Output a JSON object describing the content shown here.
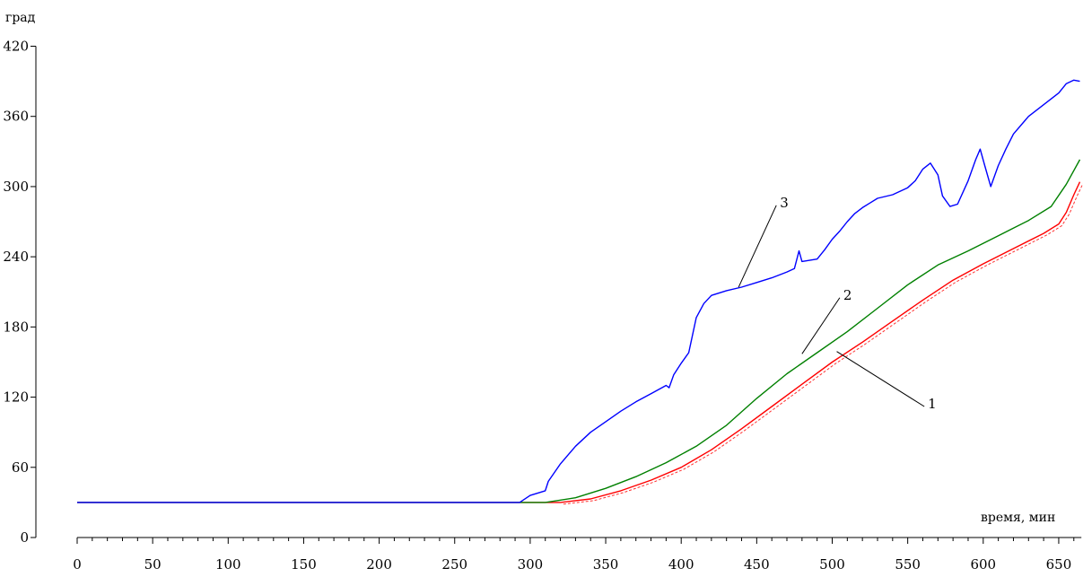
{
  "chart_data": {
    "type": "line",
    "ylabel": "град",
    "xlabel": "время, мин",
    "xlim": [
      0,
      665
    ],
    "ylim": [
      0,
      420
    ],
    "x_ticks": [
      0,
      50,
      100,
      150,
      200,
      250,
      300,
      350,
      400,
      450,
      500,
      550,
      600,
      650
    ],
    "y_ticks": [
      0,
      60,
      120,
      180,
      240,
      300,
      360,
      420
    ],
    "grid": false,
    "series": [
      {
        "name": "1",
        "color": "#ff0000",
        "points": [
          [
            0,
            30
          ],
          [
            290,
            30
          ],
          [
            320,
            30
          ],
          [
            340,
            33
          ],
          [
            360,
            40
          ],
          [
            380,
            49
          ],
          [
            400,
            60
          ],
          [
            420,
            75
          ],
          [
            440,
            93
          ],
          [
            460,
            112
          ],
          [
            480,
            131
          ],
          [
            500,
            150
          ],
          [
            520,
            167
          ],
          [
            540,
            185
          ],
          [
            560,
            203
          ],
          [
            580,
            220
          ],
          [
            600,
            234
          ],
          [
            620,
            247
          ],
          [
            640,
            260
          ],
          [
            650,
            268
          ],
          [
            655,
            278
          ],
          [
            660,
            293
          ],
          [
            664,
            304
          ]
        ]
      },
      {
        "name": "2",
        "color": "#008000",
        "points": [
          [
            0,
            30
          ],
          [
            290,
            30
          ],
          [
            310,
            30
          ],
          [
            330,
            34
          ],
          [
            350,
            42
          ],
          [
            370,
            52
          ],
          [
            390,
            64
          ],
          [
            410,
            78
          ],
          [
            430,
            96
          ],
          [
            450,
            119
          ],
          [
            470,
            140
          ],
          [
            490,
            158
          ],
          [
            510,
            176
          ],
          [
            530,
            196
          ],
          [
            550,
            216
          ],
          [
            570,
            233
          ],
          [
            590,
            245
          ],
          [
            610,
            258
          ],
          [
            630,
            271
          ],
          [
            645,
            283
          ],
          [
            655,
            302
          ],
          [
            664,
            323
          ]
        ]
      },
      {
        "name": "3",
        "color": "#0000ff",
        "points": [
          [
            0,
            30
          ],
          [
            293,
            30
          ],
          [
            300,
            36
          ],
          [
            310,
            40
          ],
          [
            312,
            48
          ],
          [
            320,
            63
          ],
          [
            330,
            78
          ],
          [
            340,
            90
          ],
          [
            350,
            99
          ],
          [
            360,
            108
          ],
          [
            370,
            116
          ],
          [
            380,
            123
          ],
          [
            390,
            130
          ],
          [
            392,
            128
          ],
          [
            395,
            139
          ],
          [
            400,
            149
          ],
          [
            405,
            158
          ],
          [
            410,
            188
          ],
          [
            415,
            200
          ],
          [
            420,
            207
          ],
          [
            430,
            211
          ],
          [
            440,
            214
          ],
          [
            450,
            218
          ],
          [
            460,
            222
          ],
          [
            470,
            227
          ],
          [
            475,
            230
          ],
          [
            478,
            245
          ],
          [
            480,
            236
          ],
          [
            490,
            238
          ],
          [
            495,
            246
          ],
          [
            500,
            255
          ],
          [
            505,
            262
          ],
          [
            510,
            270
          ],
          [
            515,
            277
          ],
          [
            520,
            282
          ],
          [
            525,
            286
          ],
          [
            530,
            290
          ],
          [
            540,
            293
          ],
          [
            550,
            299
          ],
          [
            555,
            305
          ],
          [
            560,
            315
          ],
          [
            565,
            320
          ],
          [
            570,
            310
          ],
          [
            573,
            292
          ],
          [
            578,
            283
          ],
          [
            583,
            285
          ],
          [
            590,
            305
          ],
          [
            595,
            323
          ],
          [
            598,
            332
          ],
          [
            601,
            318
          ],
          [
            605,
            300
          ],
          [
            610,
            318
          ],
          [
            615,
            332
          ],
          [
            620,
            345
          ],
          [
            630,
            360
          ],
          [
            640,
            370
          ],
          [
            650,
            380
          ],
          [
            655,
            388
          ],
          [
            660,
            391
          ],
          [
            664,
            390
          ]
        ]
      }
    ],
    "annotations": [
      {
        "label": "1",
        "target": [
          503,
          159
        ],
        "label_at": [
          561,
          112
        ]
      },
      {
        "label": "2",
        "target": [
          480,
          157
        ],
        "label_at": [
          505,
          205
        ]
      },
      {
        "label": "3",
        "target": [
          438,
          214
        ],
        "label_at": [
          463,
          284
        ]
      }
    ]
  }
}
